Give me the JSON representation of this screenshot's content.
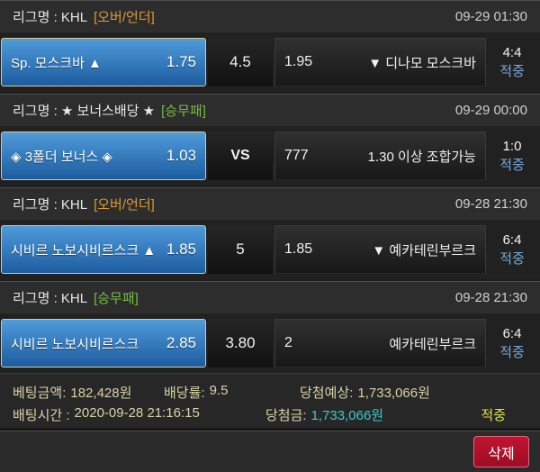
{
  "sections": [
    {
      "league": "리그명 : KHL",
      "market": "[오버/언더]",
      "market_color": "orange",
      "datetime": "09-29 01:30",
      "pick_name": "Sp. 모스크바 ▲",
      "pick_odds": "1.75",
      "middle": "4.5",
      "middle_bold": false,
      "away_odds": "1.95",
      "away_name": "▼ 디나모 모스크바",
      "score": "4:4",
      "result": "적중"
    },
    {
      "league": "리그명 : ★ 보너스배당 ★",
      "market": "[승무패]",
      "market_color": "green",
      "datetime": "09-29 00:00",
      "pick_name": "◈ 3폴더 보너스 ◈",
      "pick_odds": "1.03",
      "middle": "VS",
      "middle_bold": true,
      "away_odds": "777",
      "away_name": "1.30 이상 조합가능",
      "score": "1:0",
      "result": "적중"
    },
    {
      "league": "리그명 : KHL",
      "market": "[오버/언더]",
      "market_color": "orange",
      "datetime": "09-28 21:30",
      "pick_name": "시비르 노보시비르스크 ▲",
      "pick_odds": "1.85",
      "middle": "5",
      "middle_bold": false,
      "away_odds": "1.85",
      "away_name": "▼ 예카테린부르크",
      "score": "6:4",
      "result": "적중"
    },
    {
      "league": "리그명 : KHL",
      "market": "[승무패]",
      "market_color": "green",
      "datetime": "09-28 21:30",
      "pick_name": "시비르 노보시비르스크",
      "pick_odds": "2.85",
      "middle": "3.80",
      "middle_bold": false,
      "away_odds": "2",
      "away_name": "예카테린부르크",
      "score": "6:4",
      "result": "적중"
    }
  ],
  "summary": {
    "bet_amount_label": "베팅금액:",
    "bet_amount": "182,428원",
    "odds_rate_label": "배당률:",
    "odds_rate": "9.5",
    "expected_label": "당첨예상:",
    "expected": "1,733,066원",
    "bet_time_label": "배팅시간 :",
    "bet_time": "2020-09-28 21:16:15",
    "prize_label": "당첨금:",
    "prize": "1,733,066원",
    "result": "적중"
  },
  "actions": {
    "delete_label": "삭제"
  },
  "colors": {
    "selected_cell_top": "#519bd9",
    "selected_cell_bottom": "#1d5c9e",
    "selected_cell_border": "#dcc98f",
    "market_over_under": "#dd9933",
    "market_win_draw_lose": "#77bb44",
    "result_hit_blue": "#7aa7d9",
    "result_hit_yellow": "#e3e24b",
    "prize_cyan": "#3fc9c9",
    "summary_text": "#d8d3a7",
    "delete_red": "#b01228"
  }
}
